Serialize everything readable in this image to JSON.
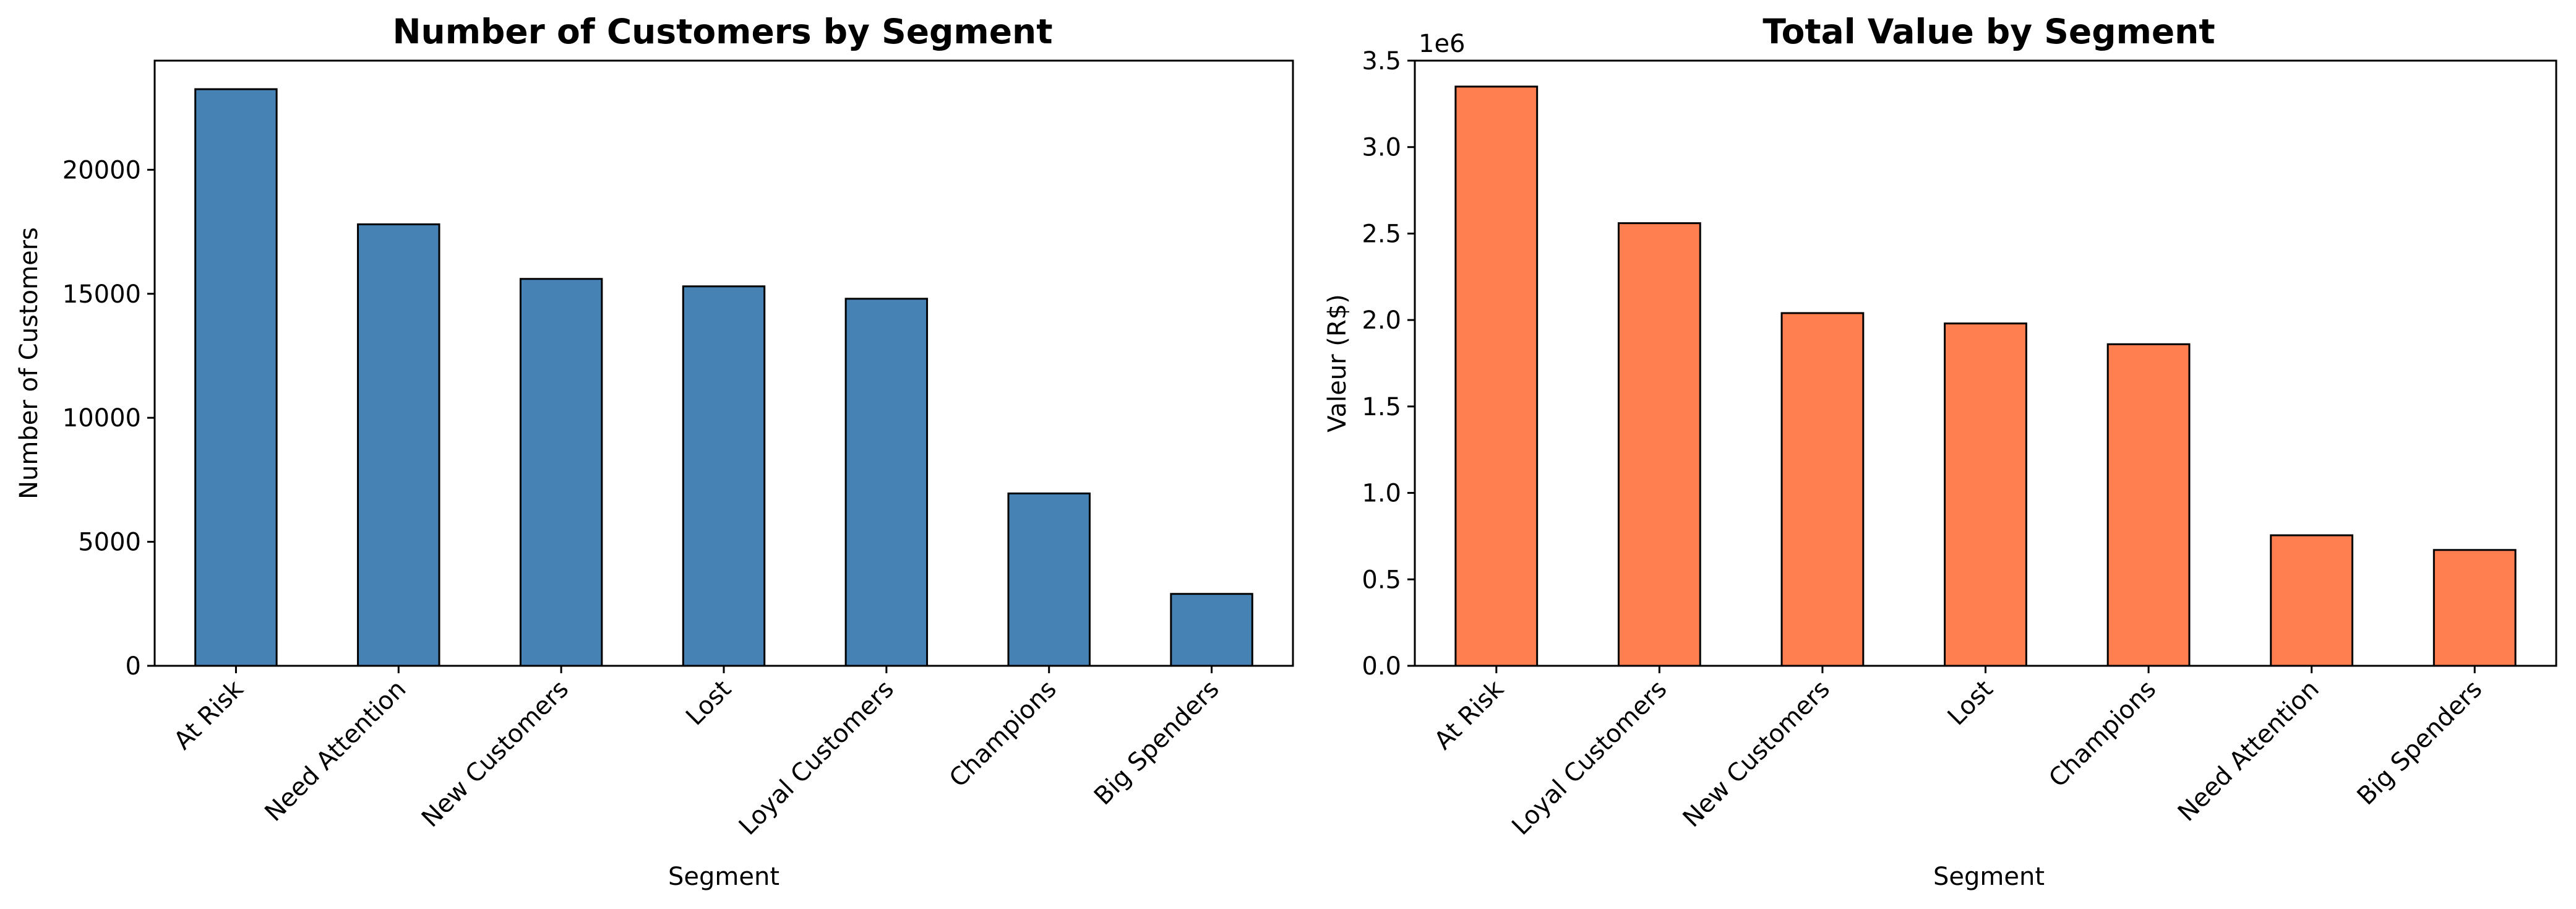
{
  "chart_data": [
    {
      "type": "bar",
      "title": "Number of Customers by Segment",
      "xlabel": "Segment",
      "ylabel": "Number of Customers",
      "categories": [
        "At Risk",
        "Need Attention",
        "New Customers",
        "Lost",
        "Loyal Customers",
        "Champions",
        "Big Spenders"
      ],
      "values": [
        23250,
        17800,
        15600,
        15300,
        14800,
        6950,
        2900
      ],
      "ylim": [
        0,
        24400
      ],
      "yticks": [
        0,
        5000,
        10000,
        15000,
        20000
      ],
      "ytick_labels": [
        "0",
        "5000",
        "10000",
        "15000",
        "20000"
      ],
      "offset_label": "",
      "bar_color": "#4682b4",
      "edge_color": "#000000",
      "grid": false,
      "legend": "none"
    },
    {
      "type": "bar",
      "title": "Total Value by Segment",
      "xlabel": "Segment",
      "ylabel": "Valeur (R$)",
      "categories": [
        "At Risk",
        "Loyal Customers",
        "New Customers",
        "Lost",
        "Champions",
        "Need Attention",
        "Big Spenders"
      ],
      "values": [
        3350000,
        2560000,
        2040000,
        1980000,
        1860000,
        755000,
        670000
      ],
      "ylim": [
        0,
        3500000
      ],
      "yticks": [
        0,
        500000,
        1000000,
        1500000,
        2000000,
        2500000,
        3000000,
        3500000
      ],
      "ytick_labels": [
        "0.0",
        "0.5",
        "1.0",
        "1.5",
        "2.0",
        "2.5",
        "3.0",
        "3.5"
      ],
      "offset_label": "1e6",
      "bar_color": "#ff7f50",
      "edge_color": "#000000",
      "grid": false,
      "legend": "none"
    }
  ]
}
